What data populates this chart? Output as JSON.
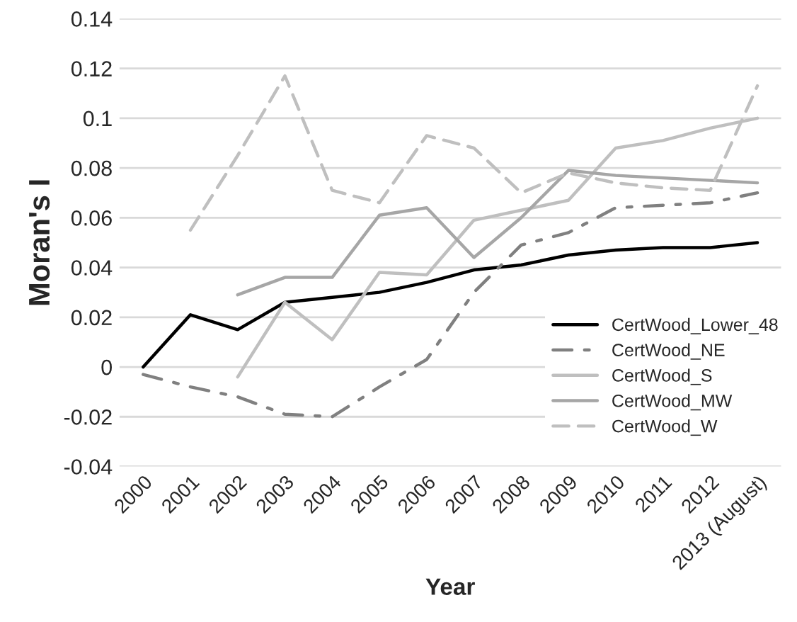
{
  "chart_data": {
    "type": "line",
    "xlabel": "Year",
    "ylabel": "Moran's I",
    "categories": [
      "2000",
      "2001",
      "2002",
      "2003",
      "2004",
      "2005",
      "2006",
      "2007",
      "2008",
      "2009",
      "2010",
      "2011",
      "2012",
      "2013 (August)"
    ],
    "series": [
      {
        "name": "CertWood_Lower_48",
        "color": "#000000",
        "line_style": "solid",
        "values": [
          0.0,
          0.021,
          0.015,
          0.026,
          0.028,
          0.03,
          0.034,
          0.039,
          0.041,
          0.045,
          0.047,
          0.048,
          0.048,
          0.05
        ]
      },
      {
        "name": "CertWood_NE",
        "color": "#808080",
        "line_style": "dashdot",
        "values": [
          -0.003,
          -0.008,
          -0.012,
          -0.019,
          -0.02,
          -0.008,
          0.003,
          0.03,
          0.049,
          0.054,
          0.064,
          0.065,
          0.066,
          0.07
        ]
      },
      {
        "name": "CertWood_S",
        "color": "#bfbfbf",
        "line_style": "solid",
        "values": [
          null,
          null,
          -0.004,
          0.026,
          0.011,
          0.038,
          0.037,
          0.059,
          0.063,
          0.067,
          0.088,
          0.091,
          0.096,
          0.1
        ]
      },
      {
        "name": "CertWood_MW",
        "color": "#a6a6a6",
        "line_style": "solid",
        "values": [
          null,
          null,
          0.029,
          0.036,
          0.036,
          0.061,
          0.064,
          0.044,
          0.06,
          0.079,
          0.077,
          0.076,
          0.075,
          0.074
        ]
      },
      {
        "name": "CertWood_W",
        "color": "#bfbfbf",
        "line_style": "dashed",
        "values": [
          null,
          0.055,
          0.085,
          0.117,
          0.071,
          0.066,
          0.093,
          0.088,
          0.07,
          0.078,
          0.074,
          0.072,
          0.071,
          0.113
        ]
      }
    ],
    "ylim": [
      -0.04,
      0.14
    ],
    "yticks": [
      {
        "value": -0.04,
        "label": "-0.04"
      },
      {
        "value": -0.02,
        "label": "-0.02"
      },
      0,
      0.02,
      0.04,
      0.06,
      0.08,
      0.1,
      0.12,
      0.14
    ],
    "grid": "y",
    "legend": "right",
    "marker": "none"
  }
}
